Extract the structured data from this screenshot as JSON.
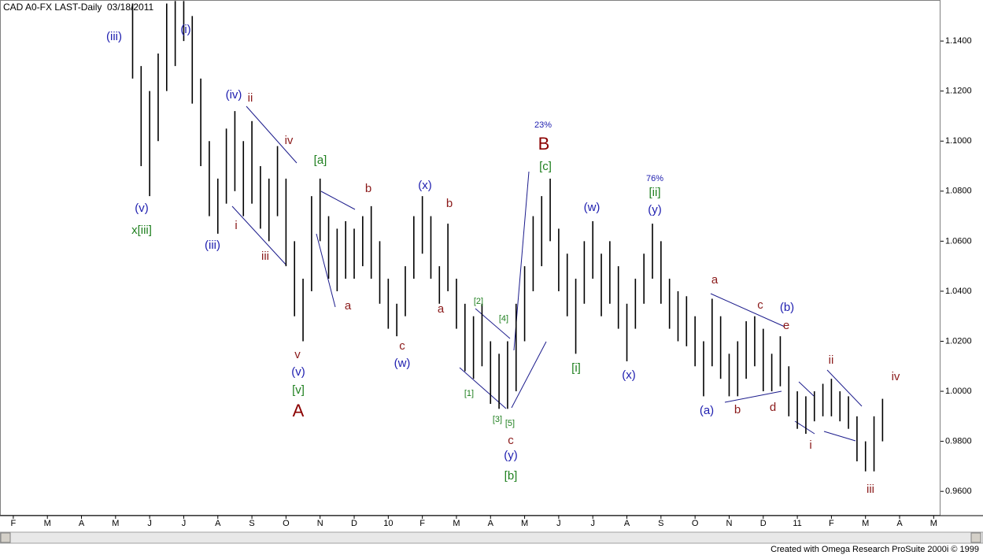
{
  "chart_data": {
    "type": "range-bar",
    "title": "CAD A0-FX LAST-Daily",
    "date": "03/18/2011",
    "footer": "Created with Omega Research ProSuite 2000i © 1999",
    "bar_color": "#000000",
    "xlim": [
      -0.39,
      27.2
    ],
    "xticks": [
      {
        "value": 0,
        "label": "F"
      },
      {
        "value": 1,
        "label": "M"
      },
      {
        "value": 2,
        "label": "A"
      },
      {
        "value": 3,
        "label": "M"
      },
      {
        "value": 4,
        "label": "J"
      },
      {
        "value": 5,
        "label": "J"
      },
      {
        "value": 6,
        "label": "A"
      },
      {
        "value": 7,
        "label": "S"
      },
      {
        "value": 8,
        "label": "O"
      },
      {
        "value": 9,
        "label": "N"
      },
      {
        "value": 10,
        "label": "D"
      },
      {
        "value": 11,
        "label": "10"
      },
      {
        "value": 12,
        "label": "F"
      },
      {
        "value": 13,
        "label": "M"
      },
      {
        "value": 14,
        "label": "A"
      },
      {
        "value": 15,
        "label": "M"
      },
      {
        "value": 16,
        "label": "J"
      },
      {
        "value": 17,
        "label": "J"
      },
      {
        "value": 18,
        "label": "A"
      },
      {
        "value": 19,
        "label": "S"
      },
      {
        "value": 20,
        "label": "O"
      },
      {
        "value": 21,
        "label": "N"
      },
      {
        "value": 22,
        "label": "D"
      },
      {
        "value": 23,
        "label": "11"
      },
      {
        "value": 24,
        "label": "F"
      },
      {
        "value": 25,
        "label": "M"
      },
      {
        "value": 26,
        "label": "A"
      },
      {
        "value": 27,
        "label": "M"
      }
    ],
    "ylim": [
      0.9503,
      1.1564
    ],
    "yticks": [
      {
        "value": 1.14,
        "label": "1.1400"
      },
      {
        "value": 1.12,
        "label": "1.1200"
      },
      {
        "value": 1.1,
        "label": "1.1000"
      },
      {
        "value": 1.08,
        "label": "1.0800"
      },
      {
        "value": 1.06,
        "label": "1.0600"
      },
      {
        "value": 1.04,
        "label": "1.0400"
      },
      {
        "value": 1.02,
        "label": "1.0200"
      },
      {
        "value": 1.0,
        "label": "1.0000"
      },
      {
        "value": 0.98,
        "label": "0.9800"
      },
      {
        "value": 0.96,
        "label": "0.9600"
      }
    ],
    "x": [
      3.5,
      3.75,
      4.0,
      4.25,
      4.5,
      4.75,
      5.0,
      5.25,
      5.5,
      5.75,
      6.0,
      6.25,
      6.5,
      6.75,
      7.0,
      7.25,
      7.5,
      7.75,
      8.0,
      8.25,
      8.5,
      8.75,
      9.0,
      9.25,
      9.5,
      9.75,
      10.0,
      10.25,
      10.5,
      10.75,
      11.0,
      11.25,
      11.5,
      11.75,
      12.0,
      12.25,
      12.5,
      12.75,
      13.0,
      13.25,
      13.5,
      13.75,
      14.0,
      14.25,
      14.5,
      14.75,
      15.0,
      15.25,
      15.5,
      15.75,
      16.0,
      16.25,
      16.5,
      16.75,
      17.0,
      17.25,
      17.5,
      17.75,
      18.0,
      18.25,
      18.5,
      18.75,
      19.0,
      19.25,
      19.5,
      19.75,
      20.0,
      20.25,
      20.5,
      20.75,
      21.0,
      21.25,
      21.5,
      21.75,
      22.0,
      22.25,
      22.5,
      22.75,
      23.0,
      23.25,
      23.5,
      23.75,
      24.0,
      24.25,
      24.5,
      24.75,
      25.0,
      25.25,
      25.5
    ],
    "high": [
      1.155,
      1.13,
      1.12,
      1.135,
      1.155,
      1.156,
      1.156,
      1.15,
      1.125,
      1.1,
      1.085,
      1.105,
      1.112,
      1.1,
      1.108,
      1.09,
      1.085,
      1.098,
      1.085,
      1.06,
      1.045,
      1.078,
      1.085,
      1.07,
      1.065,
      1.068,
      1.065,
      1.07,
      1.074,
      1.06,
      1.045,
      1.035,
      1.05,
      1.07,
      1.078,
      1.07,
      1.05,
      1.067,
      1.045,
      1.035,
      1.03,
      1.035,
      1.02,
      1.015,
      1.02,
      1.035,
      1.05,
      1.07,
      1.078,
      1.085,
      1.065,
      1.055,
      1.045,
      1.06,
      1.068,
      1.055,
      1.06,
      1.05,
      1.035,
      1.045,
      1.055,
      1.067,
      1.06,
      1.045,
      1.04,
      1.038,
      1.03,
      1.02,
      1.037,
      1.03,
      1.015,
      1.02,
      1.028,
      1.03,
      1.025,
      1.015,
      1.022,
      1.01,
      1.0,
      0.998,
      1.0,
      1.003,
      1.005,
      1.0,
      0.998,
      0.99,
      0.98,
      0.99,
      0.997
    ],
    "low": [
      1.125,
      1.09,
      1.078,
      1.1,
      1.12,
      1.13,
      1.14,
      1.115,
      1.09,
      1.07,
      1.063,
      1.075,
      1.08,
      1.07,
      1.075,
      1.065,
      1.06,
      1.07,
      1.05,
      1.03,
      1.02,
      1.04,
      1.06,
      1.045,
      1.04,
      1.045,
      1.045,
      1.05,
      1.045,
      1.035,
      1.025,
      1.022,
      1.03,
      1.045,
      1.055,
      1.045,
      1.035,
      1.04,
      1.025,
      1.008,
      1.005,
      1.01,
      0.995,
      0.993,
      0.993,
      1.0,
      1.02,
      1.04,
      1.05,
      1.06,
      1.04,
      1.03,
      1.015,
      1.035,
      1.045,
      1.03,
      1.035,
      1.025,
      1.012,
      1.025,
      1.035,
      1.045,
      1.035,
      1.025,
      1.02,
      1.018,
      1.01,
      0.998,
      1.01,
      1.005,
      0.998,
      0.998,
      1.005,
      1.01,
      1.0,
      1.0,
      1.002,
      0.99,
      0.985,
      0.983,
      0.988,
      0.99,
      0.99,
      0.988,
      0.985,
      0.972,
      0.968,
      0.968,
      0.98
    ],
    "annotations": [
      {
        "text": "(iii)",
        "color": "#2020b0"
      },
      {
        "text": "(i)",
        "color": "#2020b0"
      },
      {
        "text": "(v)",
        "color": "#2020b0"
      },
      {
        "text": "x[iii]",
        "color": "#208020"
      },
      {
        "text": "(iv)",
        "color": "#2020b0"
      },
      {
        "text": "ii",
        "color": "#8b1a1a"
      },
      {
        "text": "iv",
        "color": "#8b1a1a"
      },
      {
        "text": "(iii)",
        "color": "#2020b0"
      },
      {
        "text": "i",
        "color": "#8b1a1a"
      },
      {
        "text": "iii",
        "color": "#8b1a1a"
      },
      {
        "text": "[a]",
        "color": "#208020"
      },
      {
        "text": "b",
        "color": "#8b1a1a"
      },
      {
        "text": "a",
        "color": "#8b1a1a"
      },
      {
        "text": "(x)",
        "color": "#2020b0"
      },
      {
        "text": "b",
        "color": "#8b1a1a"
      },
      {
        "text": "v",
        "color": "#8b1a1a"
      },
      {
        "text": "(v)",
        "color": "#2020b0"
      },
      {
        "text": "[v]",
        "color": "#208020"
      },
      {
        "text": "A",
        "color": "#8b0000"
      },
      {
        "text": "c",
        "color": "#8b1a1a"
      },
      {
        "text": "(w)",
        "color": "#2020b0"
      },
      {
        "text": "a",
        "color": "#8b1a1a"
      },
      {
        "text": "[2]",
        "color": "#208020"
      },
      {
        "text": "[4]",
        "color": "#208020"
      },
      {
        "text": "[1]",
        "color": "#208020"
      },
      {
        "text": "[3]",
        "color": "#208020"
      },
      {
        "text": "[5]",
        "color": "#208020"
      },
      {
        "text": "c",
        "color": "#8b1a1a"
      },
      {
        "text": "(y)",
        "color": "#2020b0"
      },
      {
        "text": "[b]",
        "color": "#208020"
      },
      {
        "text": "23%",
        "color": "#2020b0"
      },
      {
        "text": "B",
        "color": "#8b0000"
      },
      {
        "text": "[c]",
        "color": "#208020"
      },
      {
        "text": "(w)",
        "color": "#2020b0"
      },
      {
        "text": "[i]",
        "color": "#208020"
      },
      {
        "text": "(x)",
        "color": "#2020b0"
      },
      {
        "text": "76%",
        "color": "#2020b0"
      },
      {
        "text": "[ii]",
        "color": "#208020"
      },
      {
        "text": "(y)",
        "color": "#2020b0"
      },
      {
        "text": "a",
        "color": "#8b1a1a"
      },
      {
        "text": "c",
        "color": "#8b1a1a"
      },
      {
        "text": "(b)",
        "color": "#2020b0"
      },
      {
        "text": "e",
        "color": "#8b1a1a"
      },
      {
        "text": "(a)",
        "color": "#2020b0"
      },
      {
        "text": "b",
        "color": "#8b1a1a"
      },
      {
        "text": "d",
        "color": "#8b1a1a"
      },
      {
        "text": "ii",
        "color": "#8b1a1a"
      },
      {
        "text": "iv",
        "color": "#8b1a1a"
      },
      {
        "text": "i",
        "color": "#8b1a1a"
      },
      {
        "text": "iii",
        "color": "#8b1a1a"
      }
    ]
  }
}
